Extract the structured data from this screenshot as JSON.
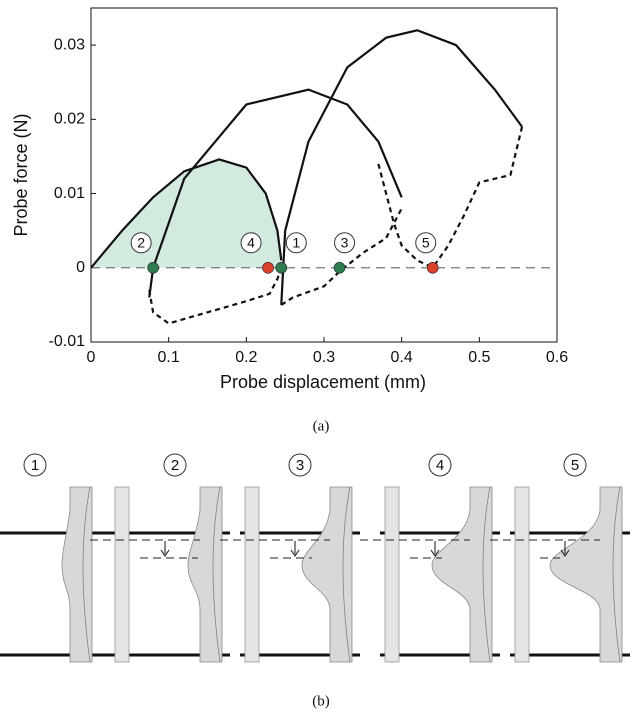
{
  "chart_data": {
    "type": "line",
    "xlabel": "Probe displacement (mm)",
    "ylabel": "Probe force (N)",
    "caption": "(a)",
    "xlim": [
      0,
      0.6
    ],
    "xticks": [
      0,
      0.1,
      0.2,
      0.3,
      0.4,
      0.5,
      0.6
    ],
    "ylim": [
      -0.01,
      0.035
    ],
    "yticks": [
      -0.01,
      0,
      0.01,
      0.02,
      0.03
    ],
    "reference_line": 0,
    "shade_color": "#d3eadf",
    "series": [
      {
        "style": "solid",
        "color": "#111111",
        "shaded": true,
        "x": [
          0,
          0.04,
          0.08,
          0.12,
          0.165,
          0.2,
          0.225,
          0.24,
          0.245
        ],
        "values": [
          0,
          0.005,
          0.0095,
          0.013,
          0.0146,
          0.0135,
          0.01,
          0.005,
          0.001
        ]
      },
      {
        "style": "dashed",
        "color": "#111111",
        "x": [
          0.075,
          0.08,
          0.1,
          0.15,
          0.2,
          0.23,
          0.24,
          0.245
        ],
        "values": [
          -0.003,
          -0.006,
          -0.0075,
          -0.006,
          -0.0045,
          -0.0035,
          -0.0015,
          0
        ]
      },
      {
        "style": "solid",
        "color": "#111111",
        "x": [
          0.075,
          0.08,
          0.12,
          0.2,
          0.28,
          0.33,
          0.37,
          0.4
        ],
        "values": [
          -0.004,
          0,
          0.012,
          0.022,
          0.024,
          0.022,
          0.017,
          0.0095
        ]
      },
      {
        "style": "dashed",
        "color": "#111111",
        "x": [
          0.245,
          0.26,
          0.3,
          0.32,
          0.35,
          0.38,
          0.4
        ],
        "values": [
          -0.005,
          -0.004,
          -0.0025,
          -0.0005,
          0.002,
          0.004,
          0.008
        ]
      },
      {
        "style": "solid",
        "color": "#111111",
        "x": [
          0.245,
          0.25,
          0.28,
          0.33,
          0.38,
          0.42,
          0.47,
          0.52,
          0.555
        ],
        "values": [
          -0.005,
          0.005,
          0.017,
          0.027,
          0.031,
          0.032,
          0.03,
          0.024,
          0.019
        ]
      },
      {
        "style": "dashed",
        "color": "#111111",
        "x": [
          0.555,
          0.54,
          0.52,
          0.5,
          0.48,
          0.46,
          0.44
        ],
        "values": [
          0.019,
          0.0125,
          0.012,
          0.0115,
          0.007,
          0.003,
          0
        ]
      },
      {
        "style": "dashed",
        "color": "#111111",
        "x": [
          0.37,
          0.38,
          0.39,
          0.4,
          0.42,
          0.44
        ],
        "values": [
          0.014,
          0.01,
          0.006,
          0.003,
          0.001,
          0
        ]
      }
    ],
    "points": [
      {
        "label": "1",
        "x": 0.245,
        "y": 0,
        "color": "#2e7d4f"
      },
      {
        "label": "2",
        "x": 0.08,
        "y": 0,
        "color": "#2e7d4f"
      },
      {
        "label": "3",
        "x": 0.32,
        "y": 0,
        "color": "#2e7d4f"
      },
      {
        "label": "4",
        "x": 0.228,
        "y": 0,
        "color": "#d9412b"
      },
      {
        "label": "5",
        "x": 0.44,
        "y": 0,
        "color": "#d9412b"
      }
    ]
  },
  "panel_b": {
    "caption": "(b)",
    "labels": [
      "1",
      "2",
      "3",
      "4",
      "5"
    ]
  }
}
